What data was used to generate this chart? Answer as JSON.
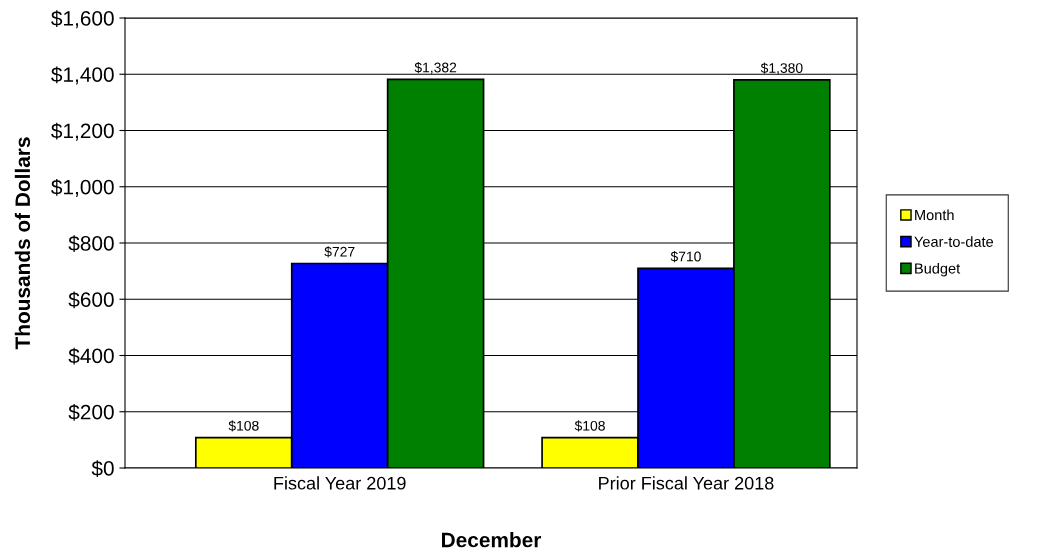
{
  "chart_data": {
    "type": "bar",
    "xlabel": "December",
    "ylabel": "Thousands of Dollars",
    "categories": [
      "Fiscal Year 2019",
      "Prior Fiscal Year 2018"
    ],
    "series": [
      {
        "name": "Month",
        "color": "#ffff00",
        "values": [
          108,
          108
        ],
        "value_labels": [
          "$108",
          "$108"
        ]
      },
      {
        "name": "Year-to-date",
        "color": "#0000ff",
        "values": [
          727,
          710
        ],
        "value_labels": [
          "$727",
          "$710"
        ]
      },
      {
        "name": "Budget",
        "color": "#008000",
        "values": [
          1382,
          1380
        ],
        "value_labels": [
          "$1,382",
          "$1,380"
        ]
      }
    ],
    "ylim": [
      0,
      1600
    ],
    "yticks": [
      {
        "value": 0,
        "label": "$0"
      },
      {
        "value": 200,
        "label": "$200"
      },
      {
        "value": 400,
        "label": "$400"
      },
      {
        "value": 600,
        "label": "$600"
      },
      {
        "value": 800,
        "label": "$800"
      },
      {
        "value": 1000,
        "label": "$1,000"
      },
      {
        "value": 1200,
        "label": "$1,200"
      },
      {
        "value": 1400,
        "label": "$1,400"
      },
      {
        "value": 1600,
        "label": "$1,600"
      }
    ],
    "grid": "y",
    "legend": "right"
  }
}
